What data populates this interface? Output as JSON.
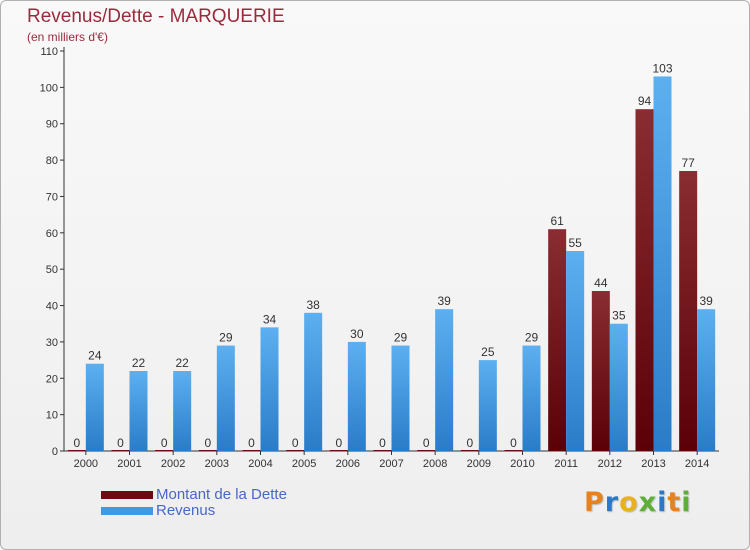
{
  "header": {
    "title": "Revenus/Dette - MARQUERIE",
    "subtitle": "(en milliers d'€)"
  },
  "legend": {
    "items": [
      {
        "label": "Montant de la Dette",
        "color": "#6b0a10"
      },
      {
        "label": "Revenus",
        "color": "#3f9ae2"
      }
    ]
  },
  "brand": {
    "letters": [
      "P",
      "r",
      "o",
      "x",
      "i",
      "t",
      "i"
    ],
    "colors": [
      "#e8821e",
      "#2c78c8",
      "#e8b21e",
      "#5fae3a",
      "#2c78c8",
      "#e8821e",
      "#5fae3a"
    ]
  },
  "chart_data": {
    "type": "bar",
    "title": "Revenus/Dette - MARQUERIE",
    "subtitle": "(en milliers d'€)",
    "categories": [
      "2000",
      "2001",
      "2002",
      "2003",
      "2004",
      "2005",
      "2006",
      "2007",
      "2008",
      "2009",
      "2010",
      "2011",
      "2012",
      "2013",
      "2014"
    ],
    "series": [
      {
        "name": "Montant de la Dette",
        "color": "#6b0a10",
        "values": [
          0,
          0,
          0,
          0,
          0,
          0,
          0,
          0,
          0,
          0,
          0,
          61,
          44,
          94,
          77
        ]
      },
      {
        "name": "Revenus",
        "color": "#3f9ae2",
        "values": [
          24,
          22,
          22,
          29,
          34,
          38,
          30,
          29,
          39,
          25,
          29,
          55,
          35,
          103,
          39
        ]
      }
    ],
    "ylim": [
      0,
      110
    ],
    "yticks": [
      0,
      10,
      20,
      30,
      40,
      50,
      60,
      70,
      80,
      90,
      100,
      110
    ],
    "grid": false,
    "legend_position": "bottom-left",
    "data_labels": true
  }
}
